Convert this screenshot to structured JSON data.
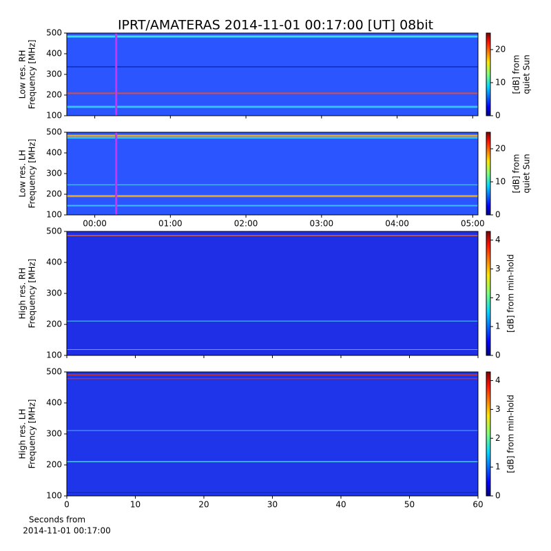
{
  "title": "IPRT/AMATERAS 2014-11-01 00:17:00 [UT]   08bit",
  "chart_data": [
    {
      "type": "heatmap",
      "ylabel": [
        "Low res. RH",
        "Frequency [MHz]"
      ],
      "xlim": [
        -0.37,
        5.07
      ],
      "ylim": [
        100,
        500
      ],
      "yticks": [
        100,
        200,
        300,
        400,
        500
      ],
      "clabel": [
        "[dB] from",
        "quiet Sun"
      ],
      "clim": [
        0,
        25
      ],
      "cticks": [
        0,
        10,
        20
      ],
      "marker_x": 0.2833,
      "marker_color": "#cc33ee"
    },
    {
      "type": "heatmap",
      "ylabel": [
        "Low res. LH",
        "Frequency [MHz]"
      ],
      "xlim": [
        -0.37,
        5.07
      ],
      "xticks": [
        {
          "value": 0,
          "label": "00:00"
        },
        {
          "value": 1,
          "label": "01:00"
        },
        {
          "value": 2,
          "label": "02:00"
        },
        {
          "value": 3,
          "label": "03:00"
        },
        {
          "value": 4,
          "label": "04:00"
        },
        {
          "value": 5,
          "label": "05:00"
        }
      ],
      "ylim": [
        100,
        500
      ],
      "yticks": [
        100,
        200,
        300,
        400,
        500
      ],
      "clabel": [
        "[dB] from",
        "quiet Sun"
      ],
      "clim": [
        0,
        25
      ],
      "cticks": [
        0,
        10,
        20
      ],
      "marker_x": 0.2833,
      "marker_color": "#cc33ee"
    },
    {
      "type": "heatmap",
      "ylabel": [
        "High res. RH",
        "Frequency [MHz]"
      ],
      "xlim": [
        0,
        60
      ],
      "ylim": [
        100,
        500
      ],
      "yticks": [
        100,
        200,
        300,
        400,
        500
      ],
      "clabel": [
        "[dB] from min-hold"
      ],
      "clim": [
        0,
        4.3
      ],
      "cticks": [
        0,
        1,
        2,
        3,
        4
      ]
    },
    {
      "type": "heatmap",
      "ylabel": [
        "High res. LH",
        "Frequency [MHz]"
      ],
      "xlim": [
        0,
        60
      ],
      "xticks": [
        0,
        10,
        20,
        30,
        40,
        50,
        60
      ],
      "xlabel": [
        "Seconds from",
        "2014-11-01 00:17:00"
      ],
      "ylim": [
        100,
        500
      ],
      "yticks": [
        100,
        200,
        300,
        400,
        500
      ],
      "clabel": [
        "[dB] from min-hold"
      ],
      "clim": [
        0,
        4.3
      ],
      "cticks": [
        0,
        1,
        2,
        3,
        4
      ]
    }
  ]
}
